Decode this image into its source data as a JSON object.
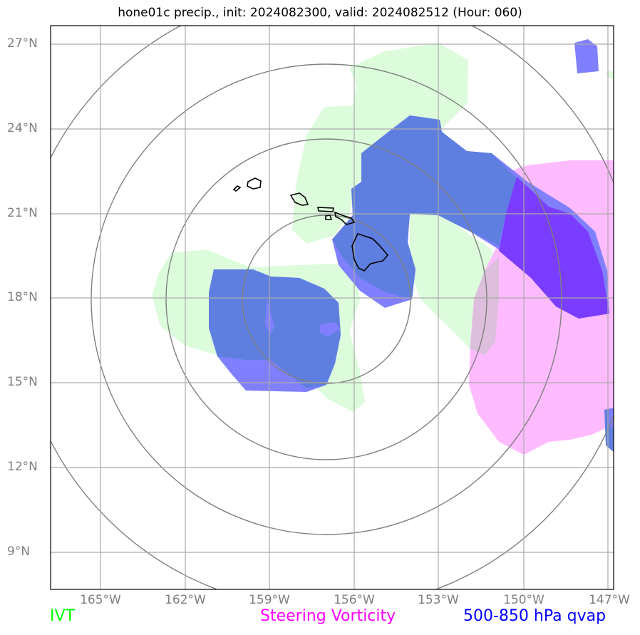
{
  "title": "hone01c precip., init: 2024082300, valid: 2024082512 (Hour: 060)",
  "lat_labels": [
    "27°N",
    "24°N",
    "21°N",
    "18°N",
    "15°N",
    "12°N",
    "9°N"
  ],
  "lon_labels": [
    "165°W",
    "162°W",
    "159°W",
    "156°W",
    "153°W",
    "150°W",
    "147°W"
  ],
  "legend": {
    "ivt": "IVT",
    "vorticity": "Steering Vorticity",
    "qvap": "500-850 hPa qvap"
  },
  "colors": {
    "ivt": "#00ff00",
    "vorticity": "#ff00ff",
    "qvap": "#0000ff",
    "ivt_fill": "#dcfcdc",
    "vorticity_fill": "#ffbbff",
    "qvap_fill_light": "#8080ff",
    "qvap_fill_dark": "#5f7fe0",
    "qvap_fill_deep": "#7a3dff"
  }
}
